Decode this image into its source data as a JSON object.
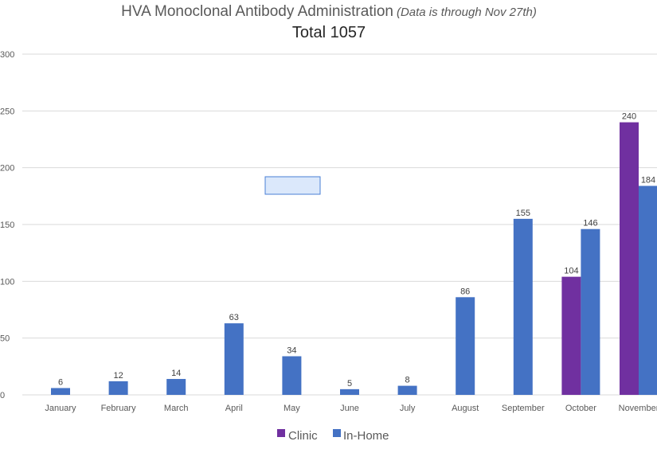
{
  "chart_data": {
    "type": "bar",
    "title": "HVA Monoclonal Antibody Administration",
    "title_note": "(Data is through Nov 27th)",
    "subtitle": "Total 1057",
    "categories": [
      "January",
      "February",
      "March",
      "April",
      "May",
      "June",
      "July",
      "August",
      "September",
      "October",
      "November"
    ],
    "series": [
      {
        "name": "Clinic",
        "color": "#7030a0",
        "values": [
          null,
          null,
          null,
          null,
          null,
          null,
          null,
          null,
          null,
          104,
          240
        ]
      },
      {
        "name": "In-Home",
        "color": "#4472c4",
        "values": [
          6,
          12,
          14,
          63,
          34,
          5,
          8,
          86,
          155,
          146,
          184
        ]
      }
    ],
    "ylim": [
      0,
      300
    ],
    "yticks": [
      "0",
      "50",
      "100",
      "150",
      "200",
      "250",
      "300"
    ],
    "grid": true,
    "legend_position": "bottom"
  }
}
